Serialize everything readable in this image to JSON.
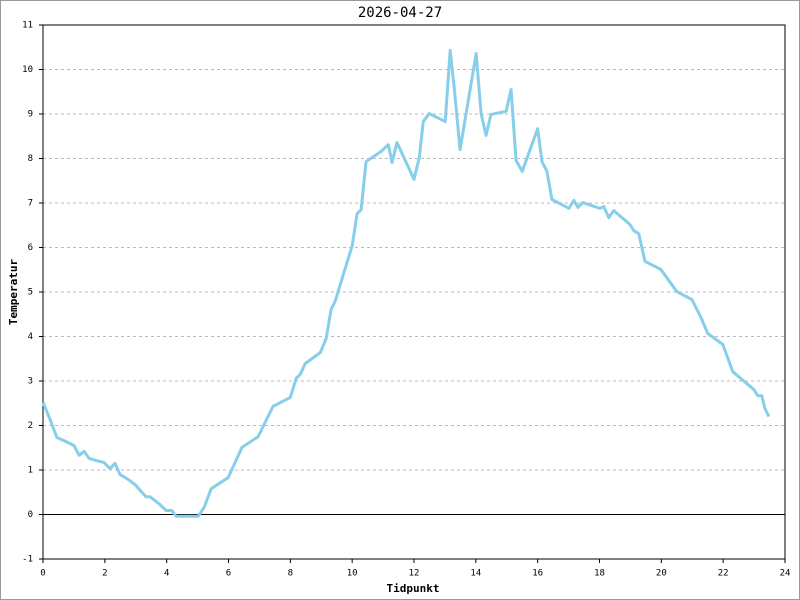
{
  "chart_data": {
    "type": "line",
    "title": "2026-04-27",
    "xlabel": "Tidpunkt",
    "ylabel": "Temperatur",
    "color": "#87ceeb",
    "grid": true,
    "x": [
      0,
      0.23,
      0.45,
      0.74,
      1.0,
      1.17,
      1.33,
      1.49,
      1.75,
      1.97,
      2.17,
      2.33,
      2.49,
      2.75,
      2.98,
      3.33,
      3.46,
      3.79,
      3.98,
      4.17,
      4.3,
      5.02,
      5.21,
      5.44,
      5.99,
      6.44,
      6.96,
      7.44,
      8.0,
      8.19,
      8.32,
      8.48,
      8.97,
      9.16,
      9.32,
      9.45,
      10.0,
      10.16,
      10.29,
      10.45,
      10.94,
      11.17,
      11.29,
      11.45,
      12.0,
      12.17,
      12.3,
      12.49,
      13.01,
      13.17,
      13.3,
      13.49,
      14.01,
      14.17,
      14.33,
      14.49,
      14.98,
      15.14,
      15.3,
      15.5,
      16.0,
      16.14,
      16.3,
      16.46,
      17.01,
      17.17,
      17.3,
      17.46,
      18.01,
      18.14,
      18.3,
      18.46,
      18.98,
      19.11,
      19.27,
      19.47,
      19.98,
      20.5,
      20.99,
      21.28,
      21.5,
      21.99,
      22.31,
      22.99,
      23.12,
      23.25,
      23.35,
      23.48
    ],
    "values": [
      2.52,
      2.13,
      1.73,
      1.64,
      1.55,
      1.33,
      1.42,
      1.26,
      1.21,
      1.17,
      1.03,
      1.15,
      0.9,
      0.79,
      0.67,
      0.4,
      0.4,
      0.22,
      0.09,
      0.09,
      -0.04,
      -0.04,
      0.16,
      0.58,
      0.83,
      1.51,
      1.75,
      2.43,
      2.63,
      3.06,
      3.15,
      3.39,
      3.64,
      3.96,
      4.61,
      4.79,
      6.04,
      6.76,
      6.85,
      7.93,
      8.16,
      8.31,
      7.91,
      8.36,
      7.53,
      8.02,
      8.83,
      9.01,
      8.83,
      10.43,
      9.6,
      8.2,
      10.36,
      9.01,
      8.52,
      8.99,
      9.06,
      9.55,
      7.96,
      7.71,
      8.67,
      7.93,
      7.71,
      7.08,
      6.88,
      7.06,
      6.9,
      7.01,
      6.88,
      6.92,
      6.67,
      6.83,
      6.52,
      6.38,
      6.31,
      5.69,
      5.51,
      5.01,
      4.83,
      4.43,
      4.07,
      3.82,
      3.21,
      2.81,
      2.67,
      2.67,
      2.38,
      2.2
    ],
    "xlim": [
      0,
      24
    ],
    "xticks": [
      0,
      2,
      4,
      6,
      8,
      10,
      12,
      14,
      16,
      18,
      20,
      22,
      24
    ],
    "ylim": [
      -1,
      11
    ],
    "yticks": [
      -1,
      0,
      1,
      2,
      3,
      4,
      5,
      6,
      7,
      8,
      9,
      10,
      11
    ]
  }
}
